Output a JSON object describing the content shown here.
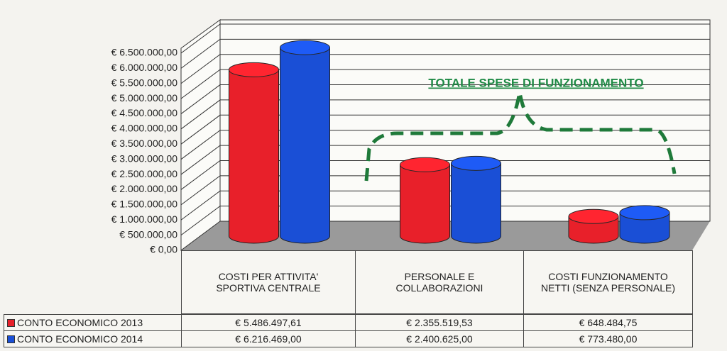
{
  "chart_data": {
    "type": "bar",
    "categories": [
      "COSTI PER ATTIVITA' SPORTIVA CENTRALE",
      "PERSONALE E COLLABORAZIONI",
      "COSTI FUNZIONAMENTO NETTI (SENZA PERSONALE)"
    ],
    "series": [
      {
        "name": "CONTO ECONOMICO 2013",
        "color": "#e8202a",
        "values": [
          5486497.61,
          2355519.53,
          648484.75
        ],
        "value_labels": [
          "€ 5.486.497,61",
          "€ 2.355.519,53",
          "€ 648.484,75"
        ]
      },
      {
        "name": "CONTO ECONOMICO 2014",
        "color": "#1a4fd6",
        "values": [
          6216469,
          2400625,
          773480
        ],
        "value_labels": [
          "€ 6.216.469,00",
          "€ 2.400.625,00",
          "€ 773.480,00"
        ]
      }
    ],
    "ylim": [
      0,
      6500000
    ],
    "yticks": [
      {
        "value": 0,
        "label": "€ 0,00"
      },
      {
        "value": 500000,
        "label": "€ 500.000,00"
      },
      {
        "value": 1000000,
        "label": "€ 1.000.000,00"
      },
      {
        "value": 1500000,
        "label": "€ 1.500.000,00"
      },
      {
        "value": 2000000,
        "label": "€ 2.000.000,00"
      },
      {
        "value": 2500000,
        "label": "€ 2.500.000,00"
      },
      {
        "value": 3000000,
        "label": "€ 3.000.000,00"
      },
      {
        "value": 3500000,
        "label": "€ 3.500.000,00"
      },
      {
        "value": 4000000,
        "label": "€ 4.000.000,00"
      },
      {
        "value": 4500000,
        "label": "€ 4.500.000,00"
      },
      {
        "value": 5000000,
        "label": "€ 5.000.000,00"
      },
      {
        "value": 5500000,
        "label": "€ 5.500.000,00"
      },
      {
        "value": 6000000,
        "label": "€ 6.000.000,00"
      },
      {
        "value": 6500000,
        "label": "€ 6.500.000,00"
      }
    ],
    "grid": true,
    "annotation": "TOTALE SPESE DI FUNZIONAMENTO"
  }
}
